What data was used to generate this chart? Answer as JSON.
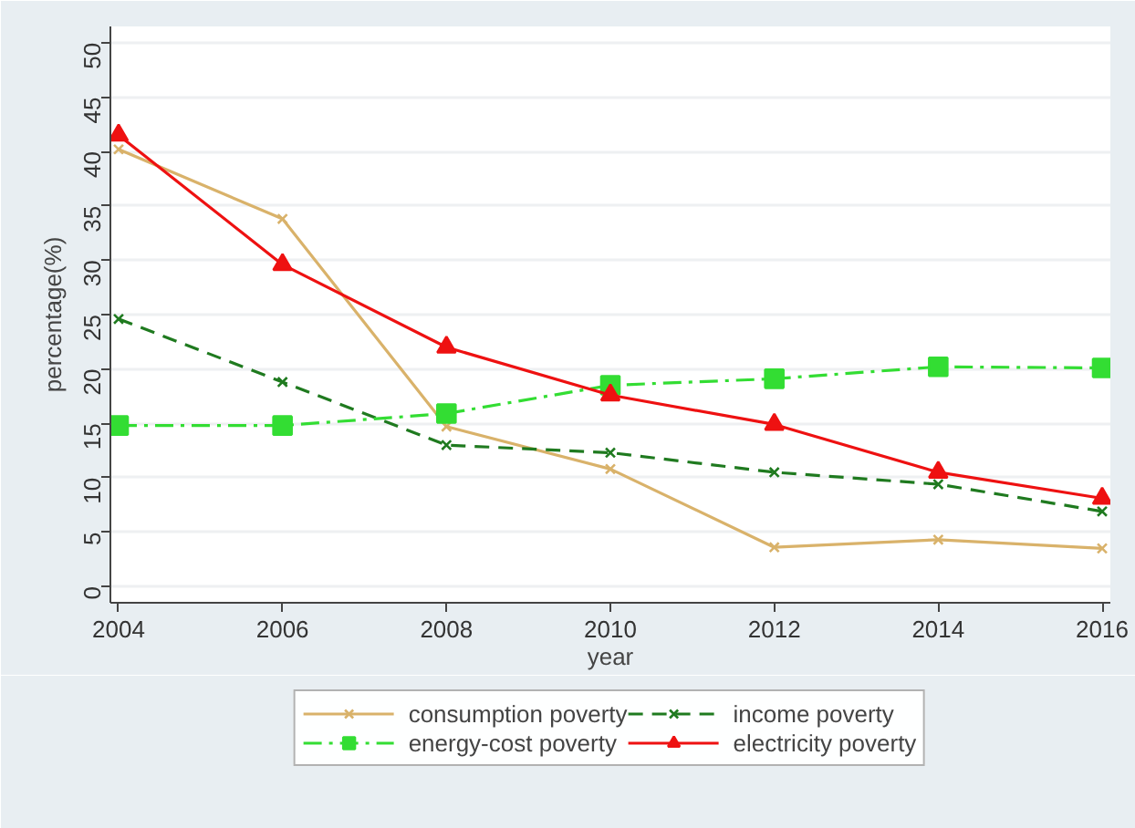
{
  "chart_data": {
    "type": "line",
    "xlabel": "year",
    "ylabel": "percentage(%)",
    "x": [
      2004,
      2006,
      2008,
      2010,
      2012,
      2014,
      2016
    ],
    "xlim": [
      2003.9,
      2016.1
    ],
    "xticks": [
      2004,
      2006,
      2008,
      2010,
      2012,
      2014,
      2016
    ],
    "ylim": [
      -1.5,
      51.5
    ],
    "yticks": [
      0,
      5,
      10,
      15,
      20,
      25,
      30,
      35,
      40,
      45,
      50
    ],
    "grid": "y",
    "legend": "bottom",
    "series": [
      {
        "name": "consumption poverty",
        "color": "#d9b26a",
        "marker": "cross",
        "line_style": "solid",
        "values": [
          40.2,
          33.8,
          14.7,
          10.8,
          3.6,
          4.3,
          3.5
        ]
      },
      {
        "name": "income poverty",
        "color": "#1f7a1f",
        "marker": "cross",
        "line_style": "dashed",
        "values": [
          24.6,
          18.8,
          13.0,
          12.3,
          10.5,
          9.4,
          6.9
        ]
      },
      {
        "name": "energy-cost poverty",
        "color": "#33dd33",
        "marker": "square",
        "line_style": "dashed",
        "values": [
          14.8,
          14.8,
          15.9,
          18.5,
          19.1,
          20.2,
          20.1
        ]
      },
      {
        "name": "electricity poverty",
        "color": "#ee1111",
        "marker": "triangle",
        "line_style": "solid",
        "values": [
          41.5,
          29.6,
          22.0,
          17.6,
          14.9,
          10.5,
          8.1
        ]
      }
    ]
  }
}
